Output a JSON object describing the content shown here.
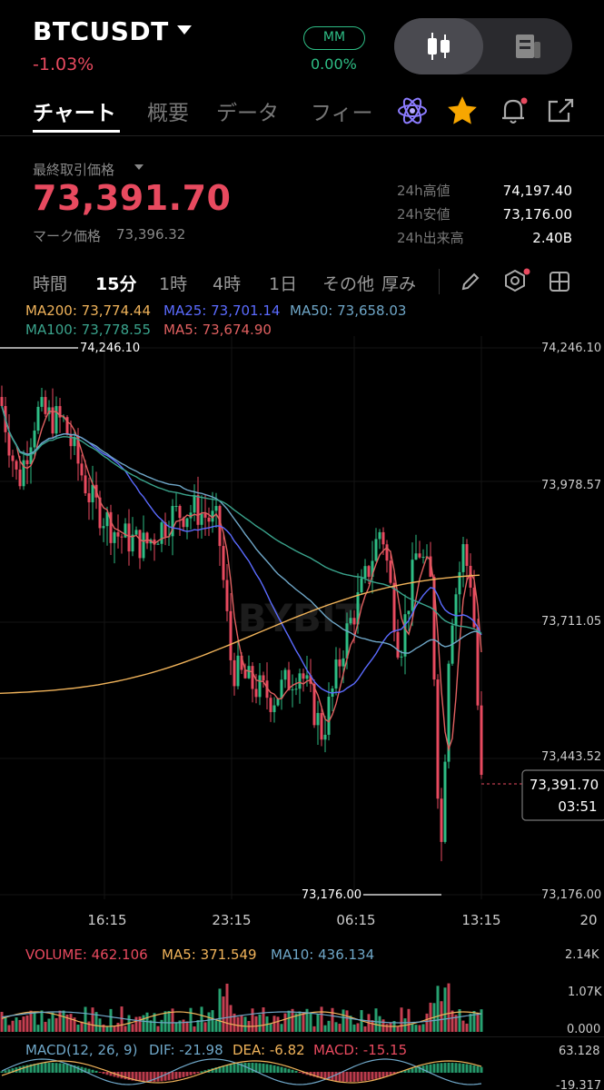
{
  "header": {
    "symbol": "BTCUSDT",
    "change": "-1.03%",
    "mm_label": "MM",
    "mm_value": "0.00%"
  },
  "tabs": [
    "チャート",
    "概要",
    "データ",
    "フィー"
  ],
  "price": {
    "label": "最終取引価格",
    "last": "73,391.70",
    "mark_label": "マーク価格",
    "mark": "73,396.32"
  },
  "stats": [
    {
      "label": "24h高値",
      "value": "74,197.40"
    },
    {
      "label": "24h安値",
      "value": "73,176.00"
    },
    {
      "label": "24h出来高",
      "value": "2.40B"
    }
  ],
  "timeframes": [
    "時間",
    "15分",
    "1時",
    "4時",
    "1日",
    "その他",
    "厚み"
  ],
  "ma_legend": {
    "ma200": "MA200: 73,774.44",
    "ma25": "MA25: 73,701.14",
    "ma50": "MA50: 73,658.03",
    "ma100": "MA100: 73,778.55",
    "ma5": "MA5: 73,674.90"
  },
  "chart": {
    "high_marker": "74,246.10",
    "low_marker": "73,176.00",
    "price_ticks": [
      "74,246.10",
      "73,978.57",
      "73,711.05",
      "73,443.52",
      "73,176.00"
    ],
    "current_price": "73,391.70",
    "countdown": "03:51",
    "time_ticks": [
      "16:15",
      "23:15",
      "06:15",
      "13:15",
      "20"
    ],
    "watermark": "BYBIT"
  },
  "volume": {
    "label": "VOLUME: 462.106",
    "ma5": "MA5: 371.549",
    "ma10": "MA10: 436.134",
    "ticks": [
      "2.14K",
      "1.07K",
      "0.000"
    ]
  },
  "macd": {
    "label": "MACD(12, 26, 9)",
    "dif": "DIF: -21.98",
    "dea": "DEA: -6.82",
    "macd": "MACD: -15.15",
    "ticks": [
      "63.128",
      "-19.317"
    ]
  },
  "colors": {
    "up": "#2ebd85",
    "down": "#e84a5f",
    "ma200": "#f0b35a",
    "ma25": "#5b6bff",
    "ma50": "#6fa7c8",
    "ma100": "#3aa38c",
    "ma5": "#e06060",
    "accent": "#f7a600"
  },
  "icons": [
    "caret-down-icon",
    "candlestick-icon",
    "news-icon",
    "atom-icon",
    "star-icon",
    "bell-icon",
    "share-icon",
    "pencil-icon",
    "settings-icon",
    "layout-grid-icon"
  ]
}
